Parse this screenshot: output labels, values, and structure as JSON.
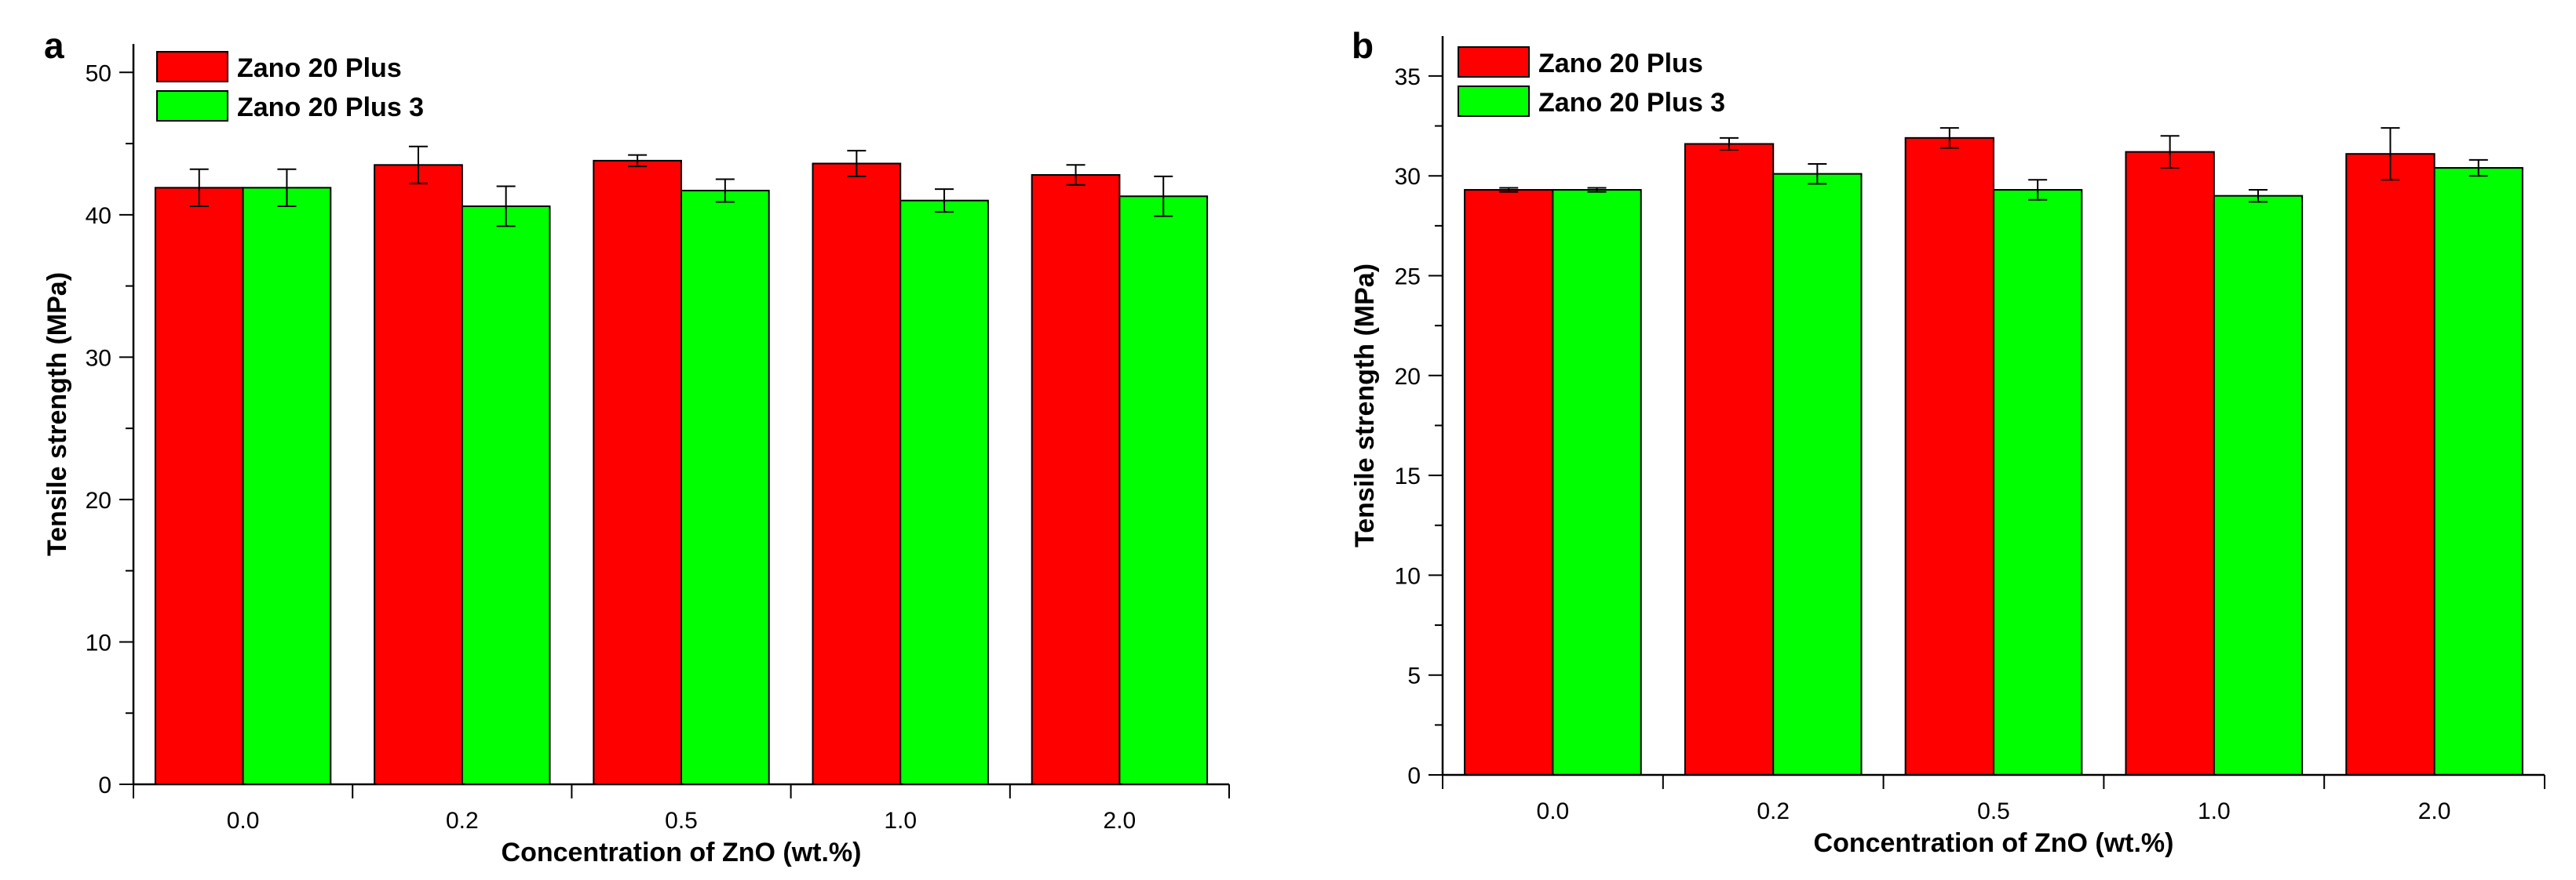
{
  "chart_data": [
    {
      "panel": "a",
      "type": "bar",
      "xlabel": "Concentration of ZnO (wt.%)",
      "ylabel": "Tensile strength (MPa)",
      "ylim": [
        0,
        52
      ],
      "yticks": [
        0,
        10,
        20,
        30,
        40,
        50
      ],
      "categories": [
        "0.0",
        "0.2",
        "0.5",
        "1.0",
        "2.0"
      ],
      "legend_position": "top-left",
      "series": [
        {
          "name": "Zano 20 Plus",
          "color": "#ff0000",
          "values": [
            41.9,
            43.5,
            43.8,
            43.6,
            42.8
          ],
          "errors": [
            1.3,
            1.3,
            0.4,
            0.9,
            0.7
          ]
        },
        {
          "name": "Zano 20 Plus 3",
          "color": "#00ff00",
          "values": [
            41.9,
            40.6,
            41.7,
            41.0,
            41.3
          ],
          "errors": [
            1.3,
            1.4,
            0.8,
            0.8,
            1.4
          ]
        }
      ]
    },
    {
      "panel": "b",
      "type": "bar",
      "xlabel": "Concentration of ZnO (wt.%)",
      "ylabel": "Tensile strength (MPa)",
      "ylim": [
        0,
        37
      ],
      "yticks": [
        0,
        5,
        10,
        15,
        20,
        25,
        30,
        35
      ],
      "categories": [
        "0.0",
        "0.2",
        "0.5",
        "1.0",
        "2.0"
      ],
      "legend_position": "top-left",
      "series": [
        {
          "name": "Zano 20 Plus",
          "color": "#ff0000",
          "values": [
            29.3,
            31.6,
            31.9,
            31.2,
            31.1
          ],
          "errors": [
            0.1,
            0.3,
            0.5,
            0.8,
            1.3
          ]
        },
        {
          "name": "Zano 20 Plus 3",
          "color": "#00ff00",
          "values": [
            29.3,
            30.1,
            29.3,
            29.0,
            30.4
          ],
          "errors": [
            0.1,
            0.5,
            0.5,
            0.3,
            0.4
          ]
        }
      ]
    }
  ]
}
